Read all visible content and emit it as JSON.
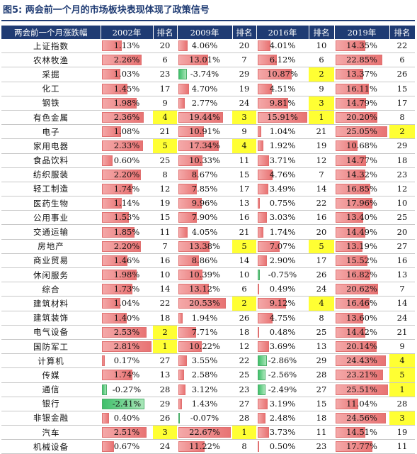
{
  "title": {
    "label": "图5:",
    "text": "两会前一个月的市场板块表现体现了政策信号"
  },
  "headers": [
    "两会前一个月涨跌幅",
    "2002年",
    "排名",
    "2009年",
    "排名",
    "2016年",
    "排名",
    "2019年",
    "排名"
  ],
  "max_abs": [
    2.81,
    22.67,
    15.91,
    25.51
  ],
  "highlight_color": "#ffff33",
  "rows": [
    {
      "name": "上证指数",
      "v": [
        1.13,
        4.06,
        4.01,
        14.35
      ],
      "t": [
        "1.13%",
        "4.06%",
        "4.01%",
        "14.35%"
      ],
      "r": [
        "20",
        "20",
        "10",
        "22"
      ]
    },
    {
      "name": "农林牧渔",
      "v": [
        2.26,
        13.01,
        6.12,
        22.85
      ],
      "t": [
        "2.26%",
        "13.01%",
        "6.12%",
        "22.85%"
      ],
      "r": [
        "6",
        "7",
        "6",
        "6"
      ]
    },
    {
      "name": "采掘",
      "v": [
        1.03,
        -3.74,
        10.87,
        13.37
      ],
      "t": [
        "1.03%",
        "-3.74%",
        "10.87%",
        "13.37%"
      ],
      "r": [
        "23",
        "29",
        "2",
        "26"
      ]
    },
    {
      "name": "化工",
      "v": [
        1.45,
        4.7,
        4.51,
        16.11
      ],
      "t": [
        "1.45%",
        "4.70%",
        "4.51%",
        "16.11%"
      ],
      "r": [
        "17",
        "19",
        "9",
        "15"
      ]
    },
    {
      "name": "钢铁",
      "v": [
        1.98,
        2.77,
        9.81,
        14.79
      ],
      "t": [
        "1.98%",
        "2.77%",
        "9.81%",
        "14.79%"
      ],
      "r": [
        "9",
        "24",
        "3",
        "17"
      ]
    },
    {
      "name": "有色金属",
      "v": [
        2.36,
        19.44,
        15.91,
        20.2
      ],
      "t": [
        "2.36%",
        "19.44%",
        "15.91%",
        "20.20%"
      ],
      "r": [
        "4",
        "3",
        "1",
        "8"
      ]
    },
    {
      "name": "电子",
      "v": [
        1.08,
        10.91,
        1.04,
        25.05
      ],
      "t": [
        "1.08%",
        "10.91%",
        "1.04%",
        "25.05%"
      ],
      "r": [
        "21",
        "9",
        "21",
        "2"
      ]
    },
    {
      "name": "家用电器",
      "v": [
        2.33,
        17.34,
        1.92,
        10.68
      ],
      "t": [
        "2.33%",
        "17.34%",
        "1.92%",
        "10.68%"
      ],
      "r": [
        "5",
        "4",
        "19",
        "29"
      ]
    },
    {
      "name": "食品饮料",
      "v": [
        0.6,
        10.33,
        3.71,
        14.77
      ],
      "t": [
        "0.60%",
        "10.33%",
        "3.71%",
        "14.77%"
      ],
      "r": [
        "25",
        "11",
        "12",
        "18"
      ]
    },
    {
      "name": "纺织服装",
      "v": [
        2.2,
        8.67,
        4.76,
        14.32
      ],
      "t": [
        "2.20%",
        "8.67%",
        "4.76%",
        "14.32%"
      ],
      "r": [
        "8",
        "15",
        "7",
        "23"
      ]
    },
    {
      "name": "轻工制造",
      "v": [
        1.74,
        7.85,
        3.49,
        16.85
      ],
      "t": [
        "1.74%",
        "7.85%",
        "3.49%",
        "16.85%"
      ],
      "r": [
        "12",
        "17",
        "14",
        "12"
      ]
    },
    {
      "name": "医药生物",
      "v": [
        1.14,
        9.96,
        0.75,
        17.96
      ],
      "t": [
        "1.14%",
        "9.96%",
        "0.75%",
        "17.96%"
      ],
      "r": [
        "19",
        "13",
        "22",
        "10"
      ]
    },
    {
      "name": "公用事业",
      "v": [
        1.53,
        7.9,
        3.03,
        13.4
      ],
      "t": [
        "1.53%",
        "7.90%",
        "3.03%",
        "13.40%"
      ],
      "r": [
        "15",
        "16",
        "16",
        "25"
      ]
    },
    {
      "name": "交通运输",
      "v": [
        1.85,
        4.05,
        1.74,
        14.49
      ],
      "t": [
        "1.85%",
        "4.05%",
        "1.74%",
        "14.49%"
      ],
      "r": [
        "11",
        "21",
        "20",
        "20"
      ]
    },
    {
      "name": "房地产",
      "v": [
        2.2,
        13.38,
        7.07,
        13.19
      ],
      "t": [
        "2.20%",
        "13.38%",
        "7.07%",
        "13.19%"
      ],
      "r": [
        "7",
        "5",
        "5",
        "27"
      ]
    },
    {
      "name": "商业贸易",
      "v": [
        1.46,
        8.86,
        2.9,
        15.52
      ],
      "t": [
        "1.46%",
        "8.86%",
        "2.90%",
        "15.52%"
      ],
      "r": [
        "16",
        "14",
        "17",
        "16"
      ]
    },
    {
      "name": "休闲服务",
      "v": [
        1.98,
        10.39,
        -0.75,
        16.82
      ],
      "t": [
        "1.98%",
        "10.39%",
        "-0.75%",
        "16.82%"
      ],
      "r": [
        "10",
        "10",
        "26",
        "13"
      ]
    },
    {
      "name": "综合",
      "v": [
        1.73,
        13.12,
        0.49,
        20.62
      ],
      "t": [
        "1.73%",
        "13.12%",
        "0.49%",
        "20.62%"
      ],
      "r": [
        "14",
        "6",
        "24",
        "7"
      ]
    },
    {
      "name": "建筑材料",
      "v": [
        1.04,
        20.53,
        9.12,
        16.46
      ],
      "t": [
        "1.04%",
        "20.53%",
        "9.12%",
        "16.46%"
      ],
      "r": [
        "22",
        "2",
        "4",
        "14"
      ]
    },
    {
      "name": "建筑装饰",
      "v": [
        1.4,
        1.94,
        4.75,
        13.6
      ],
      "t": [
        "1.40%",
        "1.94%",
        "4.75%",
        "13.60%"
      ],
      "r": [
        "18",
        "26",
        "8",
        "24"
      ]
    },
    {
      "name": "电气设备",
      "v": [
        2.53,
        7.71,
        0.48,
        14.42
      ],
      "t": [
        "2.53%",
        "7.71%",
        "0.48%",
        "14.42%"
      ],
      "r": [
        "2",
        "18",
        "25",
        "21"
      ]
    },
    {
      "name": "国防军工",
      "v": [
        2.81,
        10.22,
        3.69,
        20.14
      ],
      "t": [
        "2.81%",
        "10.22%",
        "3.69%",
        "20.14%"
      ],
      "r": [
        "1",
        "12",
        "13",
        "9"
      ]
    },
    {
      "name": "计算机",
      "v": [
        0.17,
        3.55,
        -2.86,
        24.43
      ],
      "t": [
        "0.17%",
        "3.55%",
        "-2.86%",
        "24.43%"
      ],
      "r": [
        "27",
        "22",
        "29",
        "4"
      ]
    },
    {
      "name": "传媒",
      "v": [
        1.74,
        2.58,
        -2.56,
        23.21
      ],
      "t": [
        "1.74%",
        "2.58%",
        "-2.56%",
        "23.21%"
      ],
      "r": [
        "13",
        "25",
        "28",
        "5"
      ]
    },
    {
      "name": "通信",
      "v": [
        -0.27,
        3.12,
        -2.49,
        25.51
      ],
      "t": [
        "-0.27%",
        "3.12%",
        "-2.49%",
        "25.51%"
      ],
      "r": [
        "28",
        "23",
        "27",
        "1"
      ]
    },
    {
      "name": "银行",
      "v": [
        -2.41,
        1.43,
        3.19,
        11.04
      ],
      "t": [
        "-2.41%",
        "1.43%",
        "3.19%",
        "11.04%"
      ],
      "r": [
        "29",
        "27",
        "15",
        "28"
      ]
    },
    {
      "name": "非银金融",
      "v": [
        0.4,
        -0.07,
        2.48,
        24.56
      ],
      "t": [
        "0.40%",
        "-0.07%",
        "2.48%",
        "24.56%"
      ],
      "r": [
        "26",
        "28",
        "18",
        "3"
      ]
    },
    {
      "name": "汽车",
      "v": [
        2.51,
        22.67,
        3.73,
        14.51
      ],
      "t": [
        "2.51%",
        "22.67%",
        "3.73%",
        "14.51%"
      ],
      "r": [
        "3",
        "1",
        "11",
        "19"
      ]
    },
    {
      "name": "机械设备",
      "v": [
        0.67,
        11.22,
        0.5,
        17.77
      ],
      "t": [
        "0.67%",
        "11.22%",
        "0.50%",
        "17.77%"
      ],
      "r": [
        "24",
        "8",
        "23",
        "11"
      ]
    }
  ]
}
